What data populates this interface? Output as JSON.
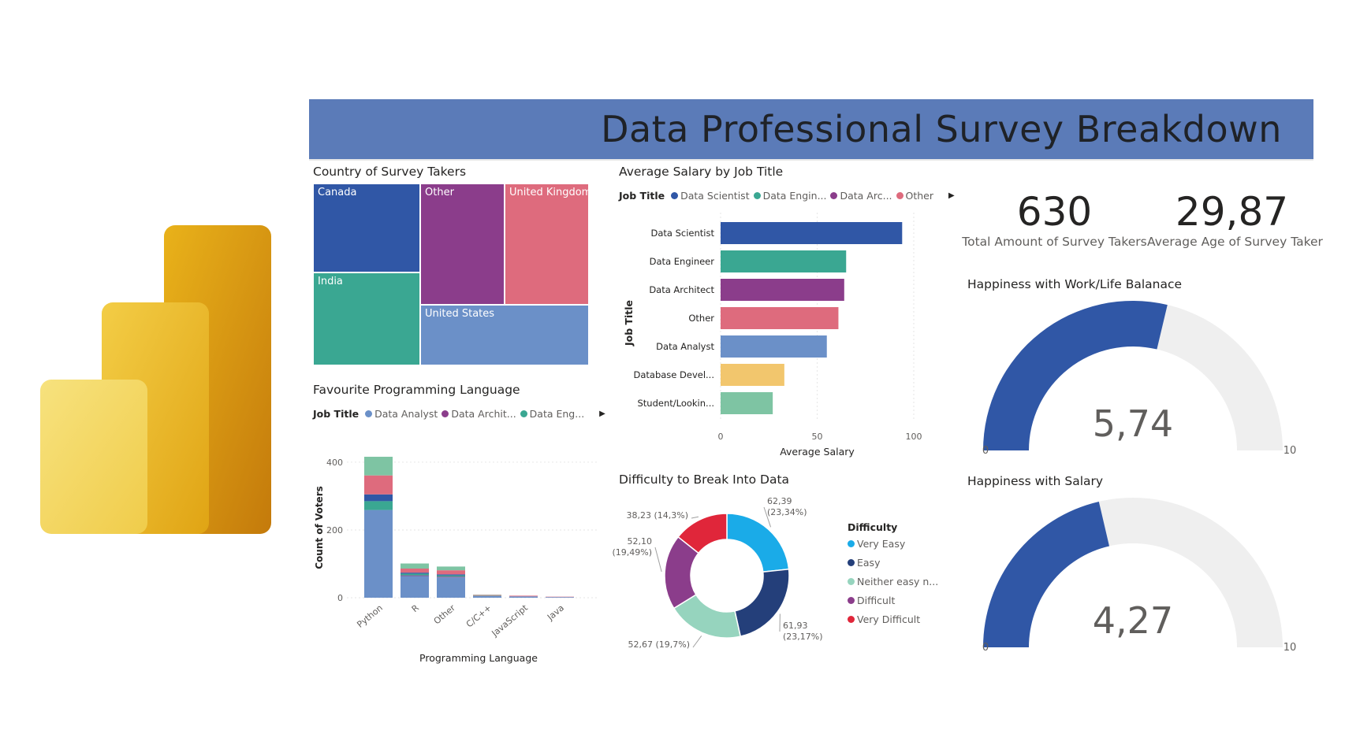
{
  "dashboard": {
    "title": "Data Professional Survey Breakdown"
  },
  "logo": {
    "name": "powerbi-logo-icon",
    "colors": [
      "#f5e17a",
      "#f0c93a",
      "#e2a71a"
    ]
  },
  "chart_data": [
    {
      "id": "country",
      "type": "treemap",
      "title": "Country of Survey Takers",
      "nodes": [
        {
          "label": "Canada",
          "color": "#3057a6"
        },
        {
          "label": "Other",
          "color": "#8b3d8b"
        },
        {
          "label": "United Kingdom",
          "color": "#de6b7d"
        },
        {
          "label": "India",
          "color": "#3aa792"
        },
        {
          "label": "United States",
          "color": "#6b90c8"
        }
      ]
    },
    {
      "id": "salary",
      "type": "bar",
      "orientation": "horizontal",
      "title": "Average Salary by Job Title",
      "legend_title": "Job Title",
      "legend": [
        {
          "label": "Data Scientist",
          "color": "#3057a6"
        },
        {
          "label": "Data Engin...",
          "color": "#3aa792"
        },
        {
          "label": "Data Arc...",
          "color": "#8b3d8b"
        },
        {
          "label": "Other",
          "color": "#de6b7d"
        }
      ],
      "legend_more": "▶",
      "xlabel": "Average Salary",
      "ylabel": "Job Title",
      "xlim": [
        0,
        100
      ],
      "xticks": [
        "0",
        "50",
        "100"
      ],
      "categories": [
        "Data Scientist",
        "Data Engineer",
        "Data Architect",
        "Other",
        "Data Analyst",
        "Database Devel...",
        "Student/Lookin..."
      ],
      "values": [
        94,
        65,
        64,
        61,
        55,
        33,
        27
      ],
      "colors": [
        "#3057a6",
        "#3aa792",
        "#8b3d8b",
        "#de6b7d",
        "#6b90c8",
        "#f2c66d",
        "#7ec4a3"
      ]
    },
    {
      "id": "language",
      "type": "bar",
      "stacked": true,
      "title": "Favourite Programming Language",
      "legend_title": "Job Title",
      "legend": [
        {
          "label": "Data Analyst",
          "color": "#6b90c8"
        },
        {
          "label": "Data Archit...",
          "color": "#8b3d8b"
        },
        {
          "label": "Data Eng...",
          "color": "#3aa792"
        }
      ],
      "legend_more": "▶",
      "xlabel": "Programming Language",
      "ylabel": "Count of Voters",
      "ylim": [
        0,
        430
      ],
      "yticks": [
        "0",
        "200",
        "400"
      ],
      "categories": [
        "Python",
        "R",
        "Other",
        "C/C++",
        "JavaScript",
        "Java"
      ],
      "series": [
        {
          "name": "Data Analyst",
          "color": "#6b90c8",
          "values": [
            259,
            64,
            60,
            5,
            4,
            2
          ]
        },
        {
          "name": "Data Archit...",
          "color": "#8b3d8b",
          "values": [
            0,
            2,
            2,
            0,
            0,
            0
          ]
        },
        {
          "name": "Data Eng...",
          "color": "#3aa792",
          "values": [
            26,
            5,
            4,
            1,
            0,
            0
          ]
        },
        {
          "color": "#3057a6",
          "values": [
            20,
            3,
            3,
            0,
            0,
            0
          ]
        },
        {
          "color": "#de6b7d",
          "values": [
            56,
            12,
            12,
            2,
            2,
            1
          ]
        },
        {
          "color": "#7ec4a3",
          "values": [
            55,
            15,
            11,
            1,
            0,
            0
          ]
        }
      ]
    },
    {
      "id": "difficulty",
      "type": "pie",
      "donut": true,
      "title": "Difficulty to Break Into Data",
      "legend_title": "Difficulty",
      "categories": [
        "Very Easy",
        "Easy",
        "Neither easy n...",
        "Difficult",
        "Very Difficult"
      ],
      "values": [
        62.39,
        61.93,
        52.67,
        52.1,
        38.23
      ],
      "percentages": [
        "23,34%",
        "23,17%",
        "19,7%",
        "19,49%",
        "14,3%"
      ],
      "data_labels": [
        "62,39 (23,34%)",
        "61,93 (23,17%)",
        "52,67 (19,7%)",
        "52,10 (19,49%)",
        "38,23 (14,3%)"
      ],
      "colors": [
        "#1aabe8",
        "#243f7a",
        "#96d4be",
        "#8b3d8b",
        "#e0263a"
      ]
    }
  ],
  "kpis": [
    {
      "value": "630",
      "label": "Total Amount of Survey Takers"
    },
    {
      "value": "29,87",
      "label": "Average Age of Survey Taker"
    }
  ],
  "gauges": [
    {
      "title": "Happiness with Work/Life Balanace",
      "value": 5.74,
      "display": "5,74",
      "min": 0,
      "max": 10,
      "min_label": "0",
      "max_label": "10",
      "fill": "#3057a6",
      "track": "#efefef"
    },
    {
      "title": "Happiness with Salary",
      "value": 4.27,
      "display": "4,27",
      "min": 0,
      "max": 10,
      "min_label": "0",
      "max_label": "10",
      "fill": "#3057a6",
      "track": "#efefef"
    }
  ]
}
